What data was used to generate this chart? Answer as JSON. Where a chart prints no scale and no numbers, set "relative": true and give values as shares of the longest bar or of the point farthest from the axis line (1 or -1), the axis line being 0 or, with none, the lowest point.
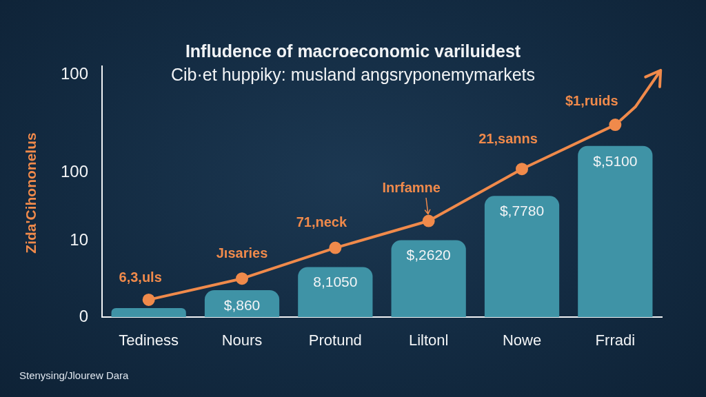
{
  "chart_data": {
    "type": "bar",
    "title": "Infludence of macroeconomic variluidest",
    "subtitle": "Cib·et huppiky: musland angsryponemymarkets",
    "ylabel": "Zida'Cihononelus",
    "categories": [
      "Tediness",
      "Nours",
      "Protund",
      "Liltonl",
      "Nowe",
      "Frradi"
    ],
    "relative": true,
    "series": [
      {
        "color": "#3f93a6",
        "values": [
          0.047,
          0.14,
          0.26,
          0.4,
          0.63,
          0.89
        ]
      },
      {
        "type": "line",
        "color": "#f08a4b",
        "values": [
          0.09,
          0.2,
          0.36,
          0.5,
          0.77,
          1
        ],
        "marker": "circle",
        "line_style": "solid"
      }
    ],
    "grid": false,
    "legend": false,
    "annotations": [
      {
        "text": "6,3,uls",
        "x": "Tediness",
        "y": 0.09
      },
      {
        "text": "Jısaries",
        "x": "Nours",
        "y": 0.2
      },
      {
        "text": "71,neck",
        "x": "Protund",
        "y": 0.36
      },
      {
        "text": "Inrfamne",
        "x": "Liltonl",
        "y": 0.5
      },
      {
        "text": "21,sanns",
        "x": "Nowe",
        "y": 0.77
      },
      {
        "text": "$1,ruids",
        "x": "Frradi",
        "y": 1
      },
      {
        "text": "$,860",
        "x": "Nours",
        "y": 0.14
      },
      {
        "text": "8,1050",
        "x": "Protund",
        "y": 0.26
      },
      {
        "text": "$,2620",
        "x": "Liltonl",
        "y": 0.4
      },
      {
        "text": "$,7780",
        "x": "Nowe",
        "y": 0.63
      },
      {
        "text": "$,5100",
        "x": "Frradi",
        "y": 0.89
      },
      "0",
      "10",
      "100",
      "100",
      "Stenysing/Jlourew Dara"
    ]
  }
}
